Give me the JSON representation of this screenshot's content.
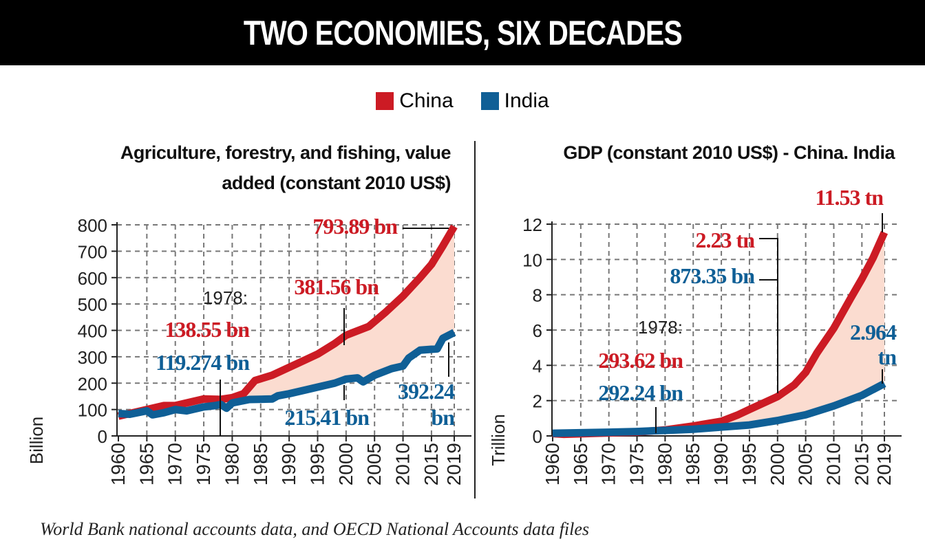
{
  "title": "TWO ECONOMIES, SIX DECADES",
  "legend": [
    {
      "name": "China",
      "color": "#cc1b24"
    },
    {
      "name": "India",
      "color": "#0f5f96"
    }
  ],
  "source": "World Bank national accounts data, and OECD National Accounts data files",
  "colors": {
    "china": "#cc1b24",
    "india": "#0f5f96",
    "gap_fill": "#fbdcd0"
  },
  "chart_data": [
    {
      "type": "line",
      "title": "Agriculture, forestry, and fishing, value added (constant 2010 US$)",
      "title_lines": [
        "Agriculture, forestry, and fishing, value",
        "added (constant 2010 US$)"
      ],
      "ylabel": "Billion",
      "ylim": [
        0,
        800
      ],
      "yticks": [
        "0",
        "100",
        "200",
        "300",
        "400",
        "500",
        "600",
        "700",
        "800"
      ],
      "xticks": [
        "1960",
        "1965",
        "1970",
        "1975",
        "1980",
        "1985",
        "1990",
        "1995",
        "2000",
        "2005",
        "2010",
        "2015",
        "2019"
      ],
      "grid": true,
      "series": [
        {
          "name": "China",
          "x": [
            1960,
            1962,
            1965,
            1968,
            1970,
            1972,
            1975,
            1978,
            1980,
            1982,
            1984,
            1987,
            1990,
            1993,
            1995,
            1998,
            2000,
            2004,
            2007,
            2010,
            2013,
            2015,
            2017,
            2019
          ],
          "y": [
            75,
            85,
            100,
            115,
            115,
            125,
            140,
            138.55,
            145,
            160,
            210,
            230,
            260,
            290,
            310,
            350,
            381.56,
            415,
            470,
            530,
            600,
            650,
            720,
            793.89
          ]
        },
        {
          "name": "India",
          "x": [
            1960,
            1962,
            1965,
            1966,
            1968,
            1970,
            1972,
            1975,
            1977,
            1978,
            1979,
            1980,
            1983,
            1987,
            1988,
            1990,
            1993,
            1995,
            1998,
            2000,
            2002,
            2003,
            2005,
            2008,
            2010,
            2011,
            2013,
            2016,
            2017,
            2019
          ],
          "y": [
            85,
            82,
            95,
            80,
            88,
            100,
            95,
            110,
            115,
            119.274,
            105,
            125,
            138,
            140,
            152,
            160,
            175,
            185,
            200,
            215.41,
            220,
            205,
            230,
            255,
            265,
            295,
            325,
            330,
            370,
            392.24
          ]
        }
      ],
      "annotations": {
        "year": "1978:",
        "china_1978": "138.55 bn",
        "india_1978": "119.274 bn",
        "china_2000": "381.56 bn",
        "india_2000": "215.41 bn",
        "china_2019": "793.89 bn",
        "india_2019_a": "392.24",
        "india_2019_b": "bn"
      }
    },
    {
      "type": "line",
      "title": "GDP (constant 2010 US$) - China. India",
      "ylabel": "Trillion",
      "ylim": [
        0,
        12
      ],
      "yticks": [
        "0",
        "2",
        "4",
        "6",
        "8",
        "10",
        "12"
      ],
      "xticks": [
        "1960",
        "1965",
        "1970",
        "1975",
        "1980",
        "1985",
        "1990",
        "1995",
        "2000",
        "2005",
        "2010",
        "2015",
        "2019"
      ],
      "grid": true,
      "series": [
        {
          "name": "China",
          "x": [
            1960,
            1962,
            1965,
            1970,
            1975,
            1978,
            1980,
            1985,
            1990,
            1993,
            1995,
            2000,
            2003,
            2005,
            2007,
            2010,
            2013,
            2015,
            2017,
            2019
          ],
          "y": [
            0.13,
            0.09,
            0.12,
            0.17,
            0.22,
            0.294,
            0.34,
            0.56,
            0.83,
            1.2,
            1.5,
            2.23,
            2.9,
            3.6,
            4.7,
            6.1,
            7.8,
            8.9,
            10.1,
            11.53
          ]
        },
        {
          "name": "India",
          "x": [
            1960,
            1965,
            1970,
            1975,
            1978,
            1980,
            1985,
            1990,
            1995,
            2000,
            2005,
            2010,
            2015,
            2019
          ],
          "y": [
            0.15,
            0.18,
            0.21,
            0.25,
            0.292,
            0.31,
            0.38,
            0.5,
            0.62,
            0.873,
            1.2,
            1.7,
            2.3,
            2.964
          ]
        }
      ],
      "annotations": {
        "year": "1978:",
        "china_1978": "293.62 bn",
        "india_1978": "292.24 bn",
        "china_2000": "2.23 tn",
        "india_2000": "873.35 bn",
        "china_2019": "11.53 tn",
        "india_2019_a": "2.964",
        "india_2019_b": "tn"
      }
    }
  ]
}
